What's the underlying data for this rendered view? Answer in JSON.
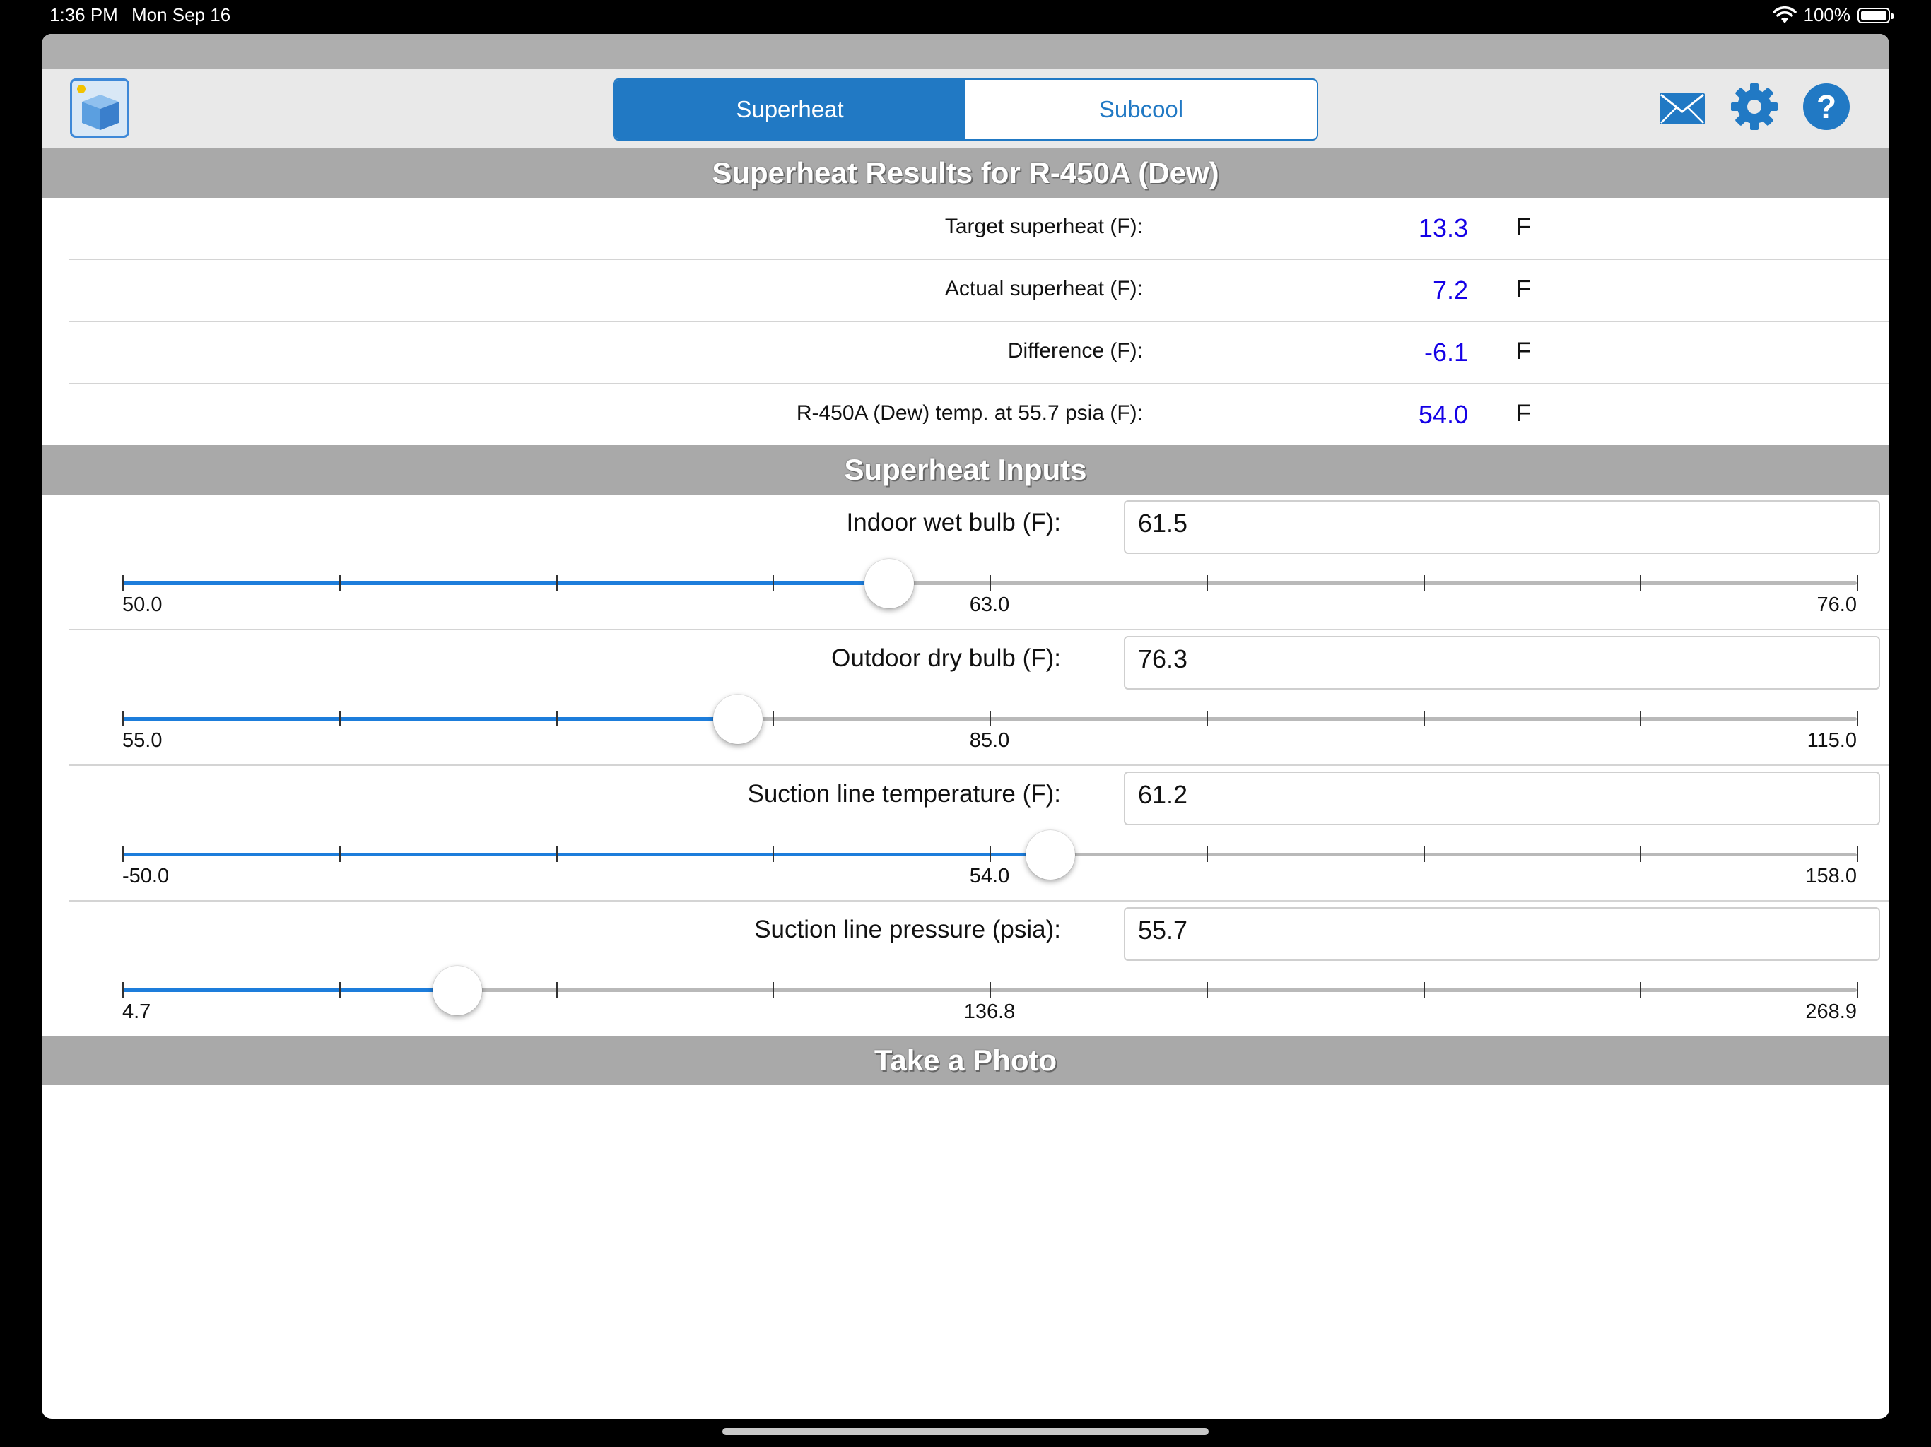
{
  "status_bar": {
    "time": "1:36 PM",
    "date": "Mon Sep 16",
    "battery": "100%"
  },
  "toolbar": {
    "segments": [
      {
        "label": "Superheat",
        "active": true
      },
      {
        "label": "Subcool",
        "active": false
      }
    ],
    "icons": [
      "app-icon",
      "mail-icon",
      "gear-icon",
      "help-icon"
    ]
  },
  "results": {
    "header": "Superheat Results for R-450A (Dew)",
    "rows": [
      {
        "label": "Target superheat (F):",
        "value": "13.3",
        "unit": "F"
      },
      {
        "label": "Actual superheat (F):",
        "value": "7.2",
        "unit": "F"
      },
      {
        "label": "Difference (F):",
        "value": "-6.1",
        "unit": "F"
      },
      {
        "label": "R-450A (Dew) temp. at 55.7 psia (F):",
        "value": "54.0",
        "unit": "F"
      }
    ]
  },
  "inputs": {
    "header": "Superheat Inputs",
    "items": [
      {
        "label": "Indoor wet bulb (F):",
        "value": "61.5",
        "min": "50.0",
        "mid": "63.0",
        "max": "76.0",
        "level": 0.442
      },
      {
        "label": "Outdoor dry bulb (F):",
        "value": "76.3",
        "min": "55.0",
        "mid": "85.0",
        "max": "115.0",
        "level": 0.355
      },
      {
        "label": "Suction line temperature (F):",
        "value": "61.2",
        "min": "-50.0",
        "mid": "54.0",
        "max": "158.0",
        "level": 0.535
      },
      {
        "label": "Suction line pressure (psia):",
        "value": "55.7",
        "min": "4.7",
        "mid": "136.8",
        "max": "268.9",
        "level": 0.193
      }
    ]
  },
  "photo": {
    "header": "Take a Photo"
  },
  "colors": {
    "accent": "#2179c4",
    "value_blue": "#1400e6",
    "section_gray": "#a9a9a9"
  }
}
